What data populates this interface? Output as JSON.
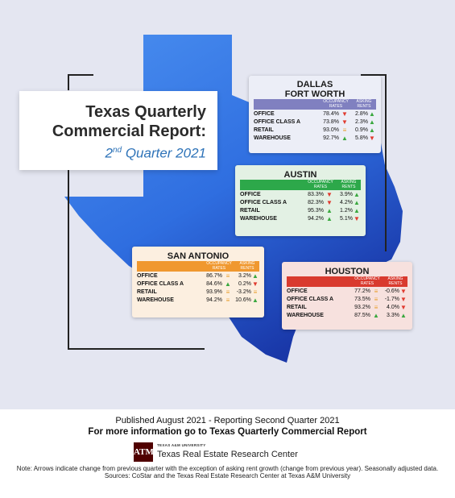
{
  "title": {
    "line1": "Texas Quarterly",
    "line2": "Commercial Report:",
    "quarter_num": "2",
    "quarter_sup": "nd",
    "quarter_rest": " Quarter 2021"
  },
  "markets": {
    "dallas": {
      "name_line1": "DALLAS",
      "name_line2": "FORT WORTH",
      "header_color": "#8080c0",
      "bg_color": "#eceef7",
      "col1": "OCCUPANCY RATES",
      "col2": "ASKING RENTS",
      "rows": [
        {
          "label": "OFFICE",
          "occ": "78.4%",
          "occ_dir": "down",
          "rent": "2.8%",
          "rent_dir": "up"
        },
        {
          "label": "OFFICE CLASS A",
          "occ": "73.8%",
          "occ_dir": "down",
          "rent": "2.3%",
          "rent_dir": "up"
        },
        {
          "label": "RETAIL",
          "occ": "93.0%",
          "occ_dir": "flat",
          "rent": "0.9%",
          "rent_dir": "up"
        },
        {
          "label": "WAREHOUSE",
          "occ": "92.7%",
          "occ_dir": "up",
          "rent": "5.8%",
          "rent_dir": "down"
        }
      ]
    },
    "austin": {
      "name_line1": "AUSTIN",
      "header_color": "#2da84a",
      "bg_color": "#e3f1e4",
      "col1": "OCCUPANCY RATES",
      "col2": "ASKING RENTS",
      "rows": [
        {
          "label": "OFFICE",
          "occ": "83.3%",
          "occ_dir": "down",
          "rent": "3.9%",
          "rent_dir": "up"
        },
        {
          "label": "OFFICE CLASS A",
          "occ": "82.3%",
          "occ_dir": "down",
          "rent": "4.2%",
          "rent_dir": "up"
        },
        {
          "label": "RETAIL",
          "occ": "95.3%",
          "occ_dir": "up",
          "rent": "1.2%",
          "rent_dir": "up"
        },
        {
          "label": "WAREHOUSE",
          "occ": "94.2%",
          "occ_dir": "up",
          "rent": "5.1%",
          "rent_dir": "down"
        }
      ]
    },
    "san_antonio": {
      "name_line1": "SAN ANTONIO",
      "header_color": "#f0982f",
      "bg_color": "#fcefe0",
      "col1": "OCCUPANCY RATES",
      "col2": "ASKING RENTS",
      "rows": [
        {
          "label": "OFFICE",
          "occ": "86.7%",
          "occ_dir": "flat",
          "rent": "3.2%",
          "rent_dir": "up"
        },
        {
          "label": "OFFICE CLASS A",
          "occ": "84.6%",
          "occ_dir": "up",
          "rent": "0.2%",
          "rent_dir": "down"
        },
        {
          "label": "RETAIL",
          "occ": "93.9%",
          "occ_dir": "flat",
          "rent": "-3.2%",
          "rent_dir": "flat"
        },
        {
          "label": "WAREHOUSE",
          "occ": "94.2%",
          "occ_dir": "flat",
          "rent": "10.6%",
          "rent_dir": "up"
        }
      ]
    },
    "houston": {
      "name_line1": "HOUSTON",
      "header_color": "#d93a2e",
      "bg_color": "#f7e1de",
      "col1": "OCCUPANCY RATES",
      "col2": "ASKING RENTS",
      "rows": [
        {
          "label": "OFFICE",
          "occ": "77.2%",
          "occ_dir": "flat",
          "rent": "-0.6%",
          "rent_dir": "down"
        },
        {
          "label": "OFFICE CLASS A",
          "occ": "73.5%",
          "occ_dir": "flat",
          "rent": "-1.7%",
          "rent_dir": "down"
        },
        {
          "label": "RETAIL",
          "occ": "93.2%",
          "occ_dir": "flat",
          "rent": "4.0%",
          "rent_dir": "down"
        },
        {
          "label": "WAREHOUSE",
          "occ": "87.5%",
          "occ_dir": "up",
          "rent": "3.3%",
          "rent_dir": "up"
        }
      ]
    }
  },
  "footer": {
    "published": "Published August 2021 - Reporting Second Quarter 2021",
    "more_info": "For more information go to Texas Quarterly Commercial Report",
    "logo_text": "ATM",
    "university": "TEXAS A&M UNIVERSITY",
    "center": "Texas Real Estate Research Center",
    "note": "Note: Arrows indicate change from previous quarter with the exception of asking rent growth (change from previous year). Seasonally adjusted data.",
    "sources": "Sources: CoStar and the Texas Real Estate Research Center at Texas A&M University"
  },
  "colors": {
    "map_light": "#3b82e6",
    "map_dark": "#1a3fb0",
    "background": "#e4e6f1"
  },
  "icons": {
    "up": "up-arrow-icon",
    "down": "down-arrow-icon",
    "flat": "no-change-icon"
  }
}
